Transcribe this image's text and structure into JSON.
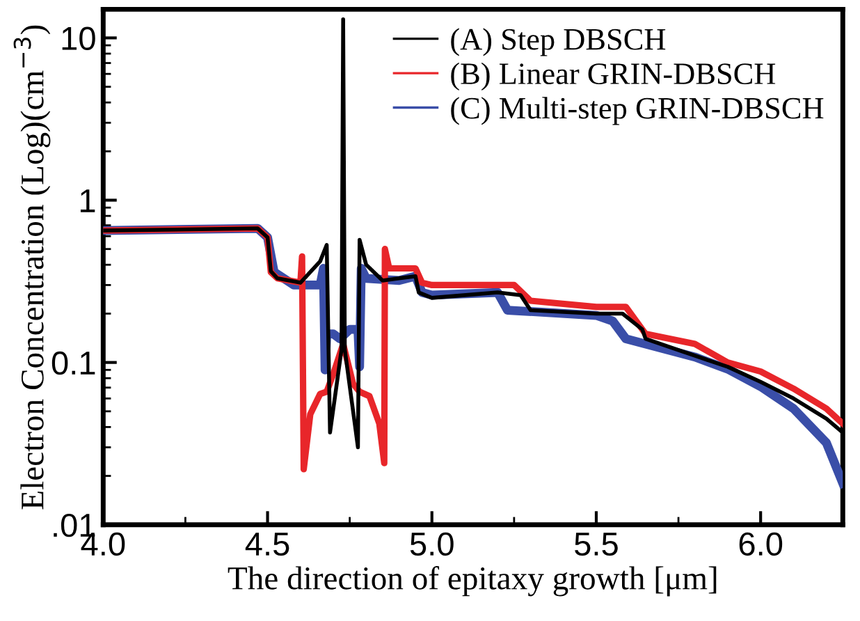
{
  "chart_data": {
    "type": "line",
    "xlabel": "The direction of epitaxy growth [μm]",
    "ylabel": "Electron Concentration (Log)(cm$^{−3}$)",
    "xlim": [
      4.0,
      6.25
    ],
    "xticks": [
      {
        "value": 4.0,
        "label": "4.0"
      },
      {
        "value": 4.5,
        "label": "4.5"
      },
      {
        "value": 5.0,
        "label": "5.0"
      },
      {
        "value": 5.5,
        "label": "5.5"
      },
      {
        "value": 6.0,
        "label": "6.0"
      }
    ],
    "ylim": [
      0.01,
      15
    ],
    "yticks": [
      {
        "value": 0.01,
        "label": ".01"
      },
      {
        "value": 0.1,
        "label": "0.1"
      },
      1,
      10
    ],
    "log": "y",
    "grid": false,
    "legend": "top right",
    "line_style": "solid",
    "marker": "none",
    "series": [
      {
        "name": "(A) Step DBSCH",
        "color": "#000000",
        "x": [
          4.0,
          4.47,
          4.5,
          4.51,
          4.53,
          4.6,
          4.66,
          4.68,
          4.69,
          4.725,
          4.73,
          4.735,
          4.775,
          4.78,
          4.8,
          4.85,
          4.9,
          4.95,
          4.96,
          5.0,
          5.2,
          5.27,
          5.3,
          5.5,
          5.58,
          5.64,
          5.65,
          5.8,
          5.9,
          6.0,
          6.1,
          6.2,
          6.25
        ],
        "values": [
          0.65,
          0.67,
          0.59,
          0.365,
          0.33,
          0.31,
          0.42,
          0.53,
          0.037,
          0.12,
          13,
          0.12,
          0.03,
          0.57,
          0.4,
          0.32,
          0.33,
          0.34,
          0.27,
          0.25,
          0.27,
          0.26,
          0.21,
          0.2,
          0.2,
          0.16,
          0.14,
          0.11,
          0.094,
          0.076,
          0.06,
          0.045,
          0.037
        ]
      },
      {
        "name": "(B) Linear GRIN-DBSCH",
        "color": "#e8262a",
        "x": [
          4.0,
          4.47,
          4.5,
          4.51,
          4.53,
          4.6,
          4.605,
          4.61,
          4.63,
          4.66,
          4.68,
          4.7,
          4.73,
          4.76,
          4.78,
          4.81,
          4.84,
          4.855,
          4.857,
          4.87,
          4.95,
          4.97,
          5.0,
          5.25,
          5.3,
          5.5,
          5.59,
          5.65,
          5.8,
          5.9,
          6.0,
          6.1,
          6.2,
          6.25
        ],
        "values": [
          0.65,
          0.67,
          0.59,
          0.36,
          0.33,
          0.31,
          0.45,
          0.022,
          0.048,
          0.064,
          0.066,
          0.085,
          0.13,
          0.074,
          0.066,
          0.062,
          0.042,
          0.024,
          0.5,
          0.38,
          0.38,
          0.31,
          0.3,
          0.3,
          0.24,
          0.22,
          0.22,
          0.15,
          0.13,
          0.1,
          0.088,
          0.069,
          0.052,
          0.042
        ]
      },
      {
        "name": "(C) Multi-step GRIN-DBSCH",
        "color": "#3a4ea8",
        "x": [
          4.0,
          4.47,
          4.5,
          4.52,
          4.53,
          4.58,
          4.66,
          4.67,
          4.675,
          4.68,
          4.7,
          4.72,
          4.75,
          4.775,
          4.78,
          4.785,
          4.8,
          4.9,
          4.95,
          4.97,
          5.0,
          5.2,
          5.23,
          5.5,
          5.55,
          5.59,
          5.8,
          5.9,
          6.0,
          6.1,
          6.2,
          6.25
        ],
        "values": [
          0.65,
          0.67,
          0.59,
          0.36,
          0.35,
          0.3,
          0.3,
          0.38,
          0.09,
          0.15,
          0.15,
          0.14,
          0.16,
          0.16,
          0.094,
          0.38,
          0.33,
          0.32,
          0.34,
          0.27,
          0.26,
          0.27,
          0.21,
          0.195,
          0.18,
          0.14,
          0.108,
          0.091,
          0.071,
          0.052,
          0.032,
          0.018
        ]
      }
    ]
  }
}
